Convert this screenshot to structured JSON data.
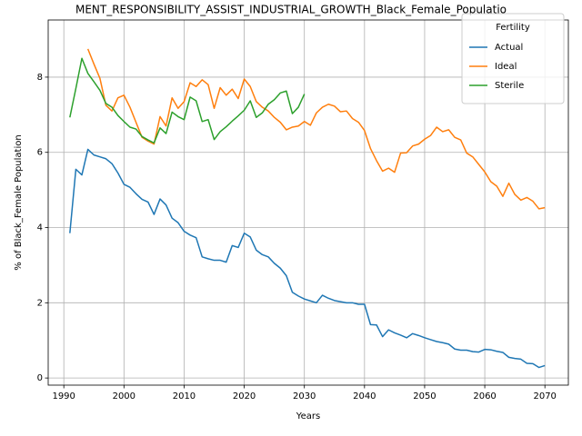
{
  "chart_data": {
    "type": "line",
    "title": "MENT_RESPONSIBILITY_ASSIST_INDUSTRIAL_GROWTH_Black_Female_Populatio",
    "xlabel": "Years",
    "ylabel": "% of Black_Female Population",
    "x": [
      1991,
      1992,
      1993,
      1994,
      1995,
      1996,
      1997,
      1998,
      1999,
      2000,
      2001,
      2002,
      2003,
      2004,
      2005,
      2006,
      2007,
      2008,
      2009,
      2010,
      2011,
      2012,
      2013,
      2014,
      2015,
      2016,
      2017,
      2018,
      2019,
      2020,
      2021,
      2022,
      2023,
      2024,
      2025,
      2026,
      2027,
      2028,
      2029,
      2030,
      2031,
      2032,
      2033,
      2034,
      2035,
      2036,
      2037,
      2038,
      2039,
      2040,
      2041,
      2042,
      2043,
      2044,
      2045,
      2046,
      2047,
      2048,
      2049,
      2050,
      2051,
      2052,
      2053,
      2054,
      2055,
      2056,
      2057,
      2058,
      2059,
      2060,
      2061,
      2062,
      2063,
      2064,
      2065,
      2066,
      2067,
      2068,
      2069,
      2070
    ],
    "series": [
      {
        "name": "Actual",
        "color": "#1f77b4",
        "values": [
          3.85,
          5.55,
          5.4,
          6.08,
          5.93,
          5.88,
          5.83,
          5.7,
          5.45,
          5.15,
          5.07,
          4.9,
          4.75,
          4.68,
          4.35,
          4.76,
          4.6,
          4.25,
          4.13,
          3.9,
          3.8,
          3.73,
          3.22,
          3.17,
          3.13,
          3.13,
          3.08,
          3.52,
          3.47,
          3.85,
          3.75,
          3.4,
          3.28,
          3.22,
          3.05,
          2.92,
          2.72,
          2.28,
          2.18,
          2.1,
          2.05,
          2.0,
          2.2,
          2.12,
          2.06,
          2.03,
          2.0,
          2.0,
          1.96,
          1.96,
          1.42,
          1.41,
          1.1,
          1.28,
          1.2,
          1.14,
          1.07,
          1.18,
          1.13,
          1.07,
          1.02,
          0.97,
          0.94,
          0.9,
          0.77,
          0.74,
          0.74,
          0.7,
          0.69,
          0.76,
          0.75,
          0.71,
          0.68,
          0.55,
          0.52,
          0.5,
          0.39,
          0.38,
          0.28,
          0.33
        ]
      },
      {
        "name": "Ideal",
        "color": "#ff7f0e",
        "values": [
          null,
          null,
          null,
          8.75,
          8.35,
          7.97,
          7.25,
          7.1,
          7.45,
          7.52,
          7.2,
          6.8,
          6.4,
          6.3,
          6.22,
          6.95,
          6.7,
          7.45,
          7.17,
          7.35,
          7.85,
          7.75,
          7.93,
          7.8,
          7.17,
          7.72,
          7.52,
          7.68,
          7.43,
          7.95,
          7.75,
          7.35,
          7.2,
          7.1,
          6.93,
          6.8,
          6.6,
          6.67,
          6.7,
          6.82,
          6.72,
          7.05,
          7.2,
          7.28,
          7.23,
          7.08,
          7.1,
          6.9,
          6.8,
          6.58,
          6.1,
          5.78,
          5.5,
          5.58,
          5.47,
          5.98,
          5.99,
          6.17,
          6.22,
          6.35,
          6.45,
          6.67,
          6.55,
          6.6,
          6.4,
          6.33,
          5.98,
          5.88,
          5.68,
          5.48,
          5.22,
          5.1,
          4.83,
          5.18,
          4.88,
          4.73,
          4.8,
          4.7,
          4.5,
          4.53
        ]
      },
      {
        "name": "Sterile",
        "color": "#2ca02c",
        "values": [
          6.93,
          7.7,
          8.5,
          8.1,
          7.88,
          7.65,
          7.3,
          7.2,
          6.98,
          6.82,
          6.67,
          6.62,
          6.42,
          6.33,
          6.25,
          6.65,
          6.5,
          7.07,
          6.95,
          6.87,
          7.47,
          7.37,
          6.82,
          6.87,
          6.34,
          6.55,
          6.68,
          6.83,
          6.97,
          7.12,
          7.37,
          6.93,
          7.05,
          7.28,
          7.4,
          7.58,
          7.63,
          7.03,
          7.2,
          7.55,
          null,
          null,
          null,
          null,
          null,
          null,
          null,
          null,
          null,
          null,
          null,
          null,
          null,
          null,
          null,
          null,
          null,
          null,
          null,
          null,
          null,
          null,
          null,
          null,
          null,
          null,
          null,
          null,
          null,
          null,
          null,
          null,
          null,
          null,
          null,
          null,
          null,
          null,
          null,
          null
        ]
      }
    ],
    "xlim": [
      1987.4,
      2073.9
    ],
    "xticks": [
      1990,
      2000,
      2010,
      2020,
      2030,
      2040,
      2050,
      2060,
      2070
    ],
    "ylim": [
      -0.19,
      9.52
    ],
    "yticks": [
      0,
      2,
      4,
      6,
      8
    ],
    "grid": true,
    "legend_title": "Fertility",
    "legend_position": "upper right"
  }
}
